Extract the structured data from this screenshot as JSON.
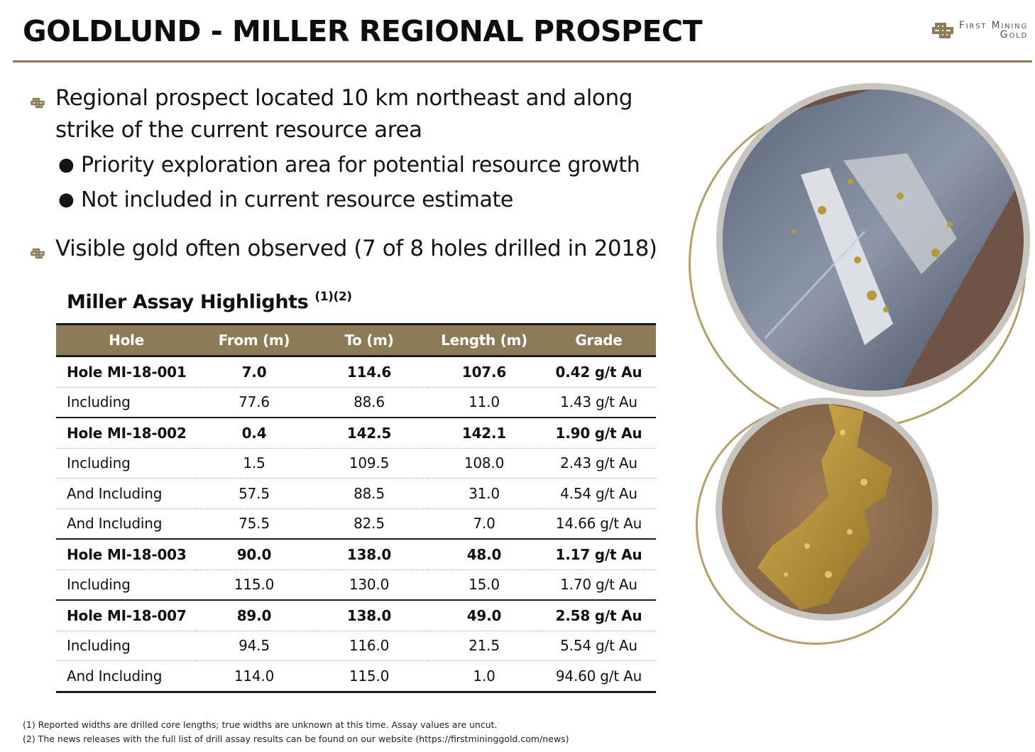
{
  "header": {
    "title": "GOLDLUND - MILLER REGIONAL PROSPECT",
    "logo_line1": "First Mining",
    "logo_line2": "Gold",
    "brand_color": "#8b7b57"
  },
  "bullets": [
    {
      "text": "Regional prospect located 10 km northeast and along strike of the current resource area",
      "sub": [
        "Priority exploration area for potential resource growth",
        "Not included in current resource estimate"
      ]
    },
    {
      "text": "Visible gold often observed (7 of 8 holes drilled in 2018)",
      "sub": []
    }
  ],
  "table": {
    "title": "Miller Assay Highlights",
    "title_sup": "(1)(2)",
    "headers": [
      "Hole",
      "From (m)",
      "To (m)",
      "Length (m)",
      "Grade"
    ],
    "rows": [
      {
        "cells": [
          "Hole MI-18-001",
          "7.0",
          "114.6",
          "107.6",
          "0.42 g/t Au"
        ],
        "main": true
      },
      {
        "cells": [
          "Including",
          "77.6",
          "88.6",
          "11.0",
          "1.43 g/t Au"
        ],
        "main": false
      },
      {
        "cells": [
          "Hole MI-18-002",
          "0.4",
          "142.5",
          "142.1",
          "1.90 g/t Au"
        ],
        "main": true
      },
      {
        "cells": [
          "Including",
          "1.5",
          "109.5",
          "108.0",
          "2.43 g/t Au"
        ],
        "main": false
      },
      {
        "cells": [
          "And Including",
          "57.5",
          "88.5",
          "31.0",
          "4.54 g/t Au"
        ],
        "main": false
      },
      {
        "cells": [
          "And Including",
          "75.5",
          "82.5",
          "7.0",
          "14.66 g/t Au"
        ],
        "main": false
      },
      {
        "cells": [
          "Hole MI-18-003",
          "90.0",
          "138.0",
          "48.0",
          "1.17 g/t Au"
        ],
        "main": true
      },
      {
        "cells": [
          "Including",
          "115.0",
          "130.0",
          "15.0",
          "1.70 g/t Au"
        ],
        "main": false
      },
      {
        "cells": [
          "Hole MI-18-007",
          "89.0",
          "138.0",
          "49.0",
          "2.58 g/t Au"
        ],
        "main": true
      },
      {
        "cells": [
          "Including",
          "94.5",
          "116.0",
          "21.5",
          "5.54 g/t Au"
        ],
        "main": false
      },
      {
        "cells": [
          "And Including",
          "114.0",
          "115.0",
          "1.0",
          "94.60 g/t Au"
        ],
        "main": false
      }
    ]
  },
  "footnotes": [
    "(1) Reported widths are drilled core lengths; true widths are unknown at this time. Assay values are uncut.",
    "(2) The news releases with the full list of drill assay results can be found on our website (https://firstmininggold.com/news)"
  ],
  "images": {
    "top": "drill-core-photo",
    "bottom": "visible-gold-photo"
  }
}
